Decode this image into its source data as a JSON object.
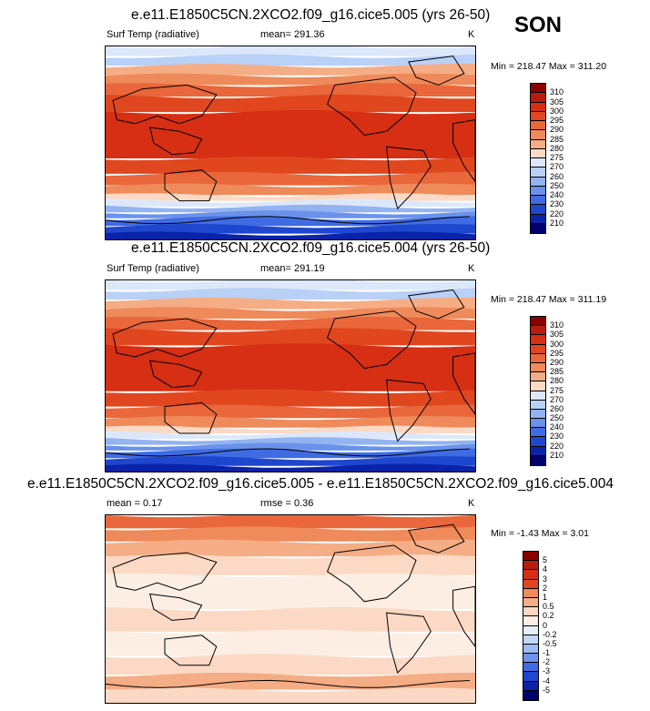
{
  "season": "SON",
  "panels": [
    {
      "id": "p1",
      "title": "e.e11.E1850C5CN.2XCO2.f09_g16.cice5.005 (yrs 26-50)",
      "left_label": "Surf Temp (radiative)",
      "center_label": "mean= 291.36",
      "unit": "K",
      "minmax": "Min = 218.47 Max = 311.20"
    },
    {
      "id": "p2",
      "title": "e.e11.E1850C5CN.2XCO2.f09_g16.cice5.004 (yrs 26-50)",
      "left_label": "Surf Temp (radiative)",
      "center_label": "mean= 291.19",
      "unit": "K",
      "minmax": "Min = 218.47 Max = 311.19"
    },
    {
      "id": "p3",
      "title": "e.e11.E1850C5CN.2XCO2.f09_g16.cice5.005 - e.e11.E1850C5CN.2XCO2.f09_g16.cice5.004",
      "left_label": "mean =   0.17",
      "center_label": "rmse =   0.36",
      "unit": "K",
      "minmax": "Min =  -1.43 Max =   3.01"
    }
  ],
  "chart_data": [
    {
      "type": "heatmap",
      "title": "e.e11.E1850C5CN.2XCO2.f09_g16.cice5.005 (yrs 26-50)",
      "variable": "Surf Temp (radiative)",
      "units": "K",
      "mean": 291.36,
      "min": 218.47,
      "max": 311.2,
      "colorbar_levels": [
        "310",
        "305",
        "300",
        "295",
        "290",
        "285",
        "280",
        "275",
        "270",
        "260",
        "250",
        "240",
        "230",
        "220",
        "210"
      ],
      "colorbar_colors": [
        "#8b0000",
        "#b81c0c",
        "#d62f14",
        "#e0471f",
        "#e9673a",
        "#ef8a5a",
        "#f5ad85",
        "#fbd9c4",
        "#dce8fa",
        "#b9d0f7",
        "#93b3f1",
        "#6a92eb",
        "#3f6be3",
        "#1f46cf",
        "#0a23a8",
        "#00006e"
      ]
    },
    {
      "type": "heatmap",
      "title": "e.e11.E1850C5CN.2XCO2.f09_g16.cice5.004 (yrs 26-50)",
      "variable": "Surf Temp (radiative)",
      "units": "K",
      "mean": 291.19,
      "min": 218.47,
      "max": 311.19,
      "colorbar_levels": [
        "310",
        "305",
        "300",
        "295",
        "290",
        "285",
        "280",
        "275",
        "270",
        "260",
        "250",
        "240",
        "230",
        "220",
        "210"
      ],
      "colorbar_colors": [
        "#8b0000",
        "#b81c0c",
        "#d62f14",
        "#e0471f",
        "#e9673a",
        "#ef8a5a",
        "#f5ad85",
        "#fbd9c4",
        "#dce8fa",
        "#b9d0f7",
        "#93b3f1",
        "#6a92eb",
        "#3f6be3",
        "#1f46cf",
        "#0a23a8",
        "#00006e"
      ]
    },
    {
      "type": "heatmap",
      "title": "e.e11.E1850C5CN.2XCO2.f09_g16.cice5.005 - e.e11.E1850C5CN.2XCO2.f09_g16.cice5.004",
      "units": "K",
      "mean": 0.17,
      "rmse": 0.36,
      "min": -1.43,
      "max": 3.01,
      "colorbar_levels": [
        "5",
        "4",
        "3",
        "2",
        "1",
        "0.5",
        "0.2",
        "0",
        "-0.2",
        "-0.5",
        "-1",
        "-2",
        "-3",
        "-4",
        "-5"
      ],
      "colorbar_colors": [
        "#8b0000",
        "#b81c0c",
        "#d62f14",
        "#e0471f",
        "#ef8a5a",
        "#f5ad85",
        "#fbd9c4",
        "#fdeee4",
        "#e4eefc",
        "#c3d7f8",
        "#9cbcf2",
        "#6f95eb",
        "#3f6be3",
        "#1f46cf",
        "#0a23a8",
        "#00006e"
      ]
    }
  ]
}
